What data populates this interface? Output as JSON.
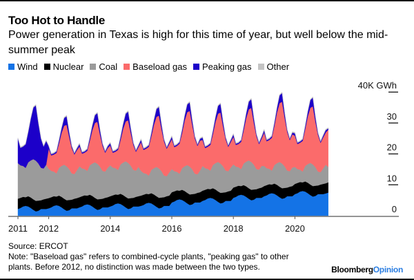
{
  "title": "Too Hot to Handle",
  "subtitle": "Power generation in Texas is high for this time of year, but well below the mid-summer peak",
  "source": "Source: ERCOT",
  "note": "Note: \"Baseload gas\" refers to combined-cycle plants, \"peaking gas\" to other plants. Before 2012, no distinction was made between the two types.",
  "logo": {
    "brand": "Bloomberg",
    "section": "Opinion"
  },
  "chart_data": {
    "type": "area",
    "stacked": true,
    "title": "Too Hot to Handle",
    "ylabel": "K GWh",
    "ylim": [
      0,
      40
    ],
    "y_ticks": [
      {
        "value": 0,
        "label": "0"
      },
      {
        "value": 10,
        "label": "10"
      },
      {
        "value": 20,
        "label": "20"
      },
      {
        "value": 30,
        "label": "30"
      },
      {
        "value": 40,
        "label": "40K GWh"
      }
    ],
    "x_ticks": [
      {
        "value": 2011,
        "label": "2011"
      },
      {
        "value": 2012,
        "label": "2012"
      },
      {
        "value": 2014,
        "label": "2014"
      },
      {
        "value": 2016,
        "label": "2016"
      },
      {
        "value": 2018,
        "label": "2018"
      },
      {
        "value": 2020,
        "label": "2020"
      }
    ],
    "xlim": [
      2011,
      2021.75
    ],
    "x_start": "2011-01",
    "x_frequency": "monthly",
    "legend_position": "top-left",
    "series": [
      {
        "name": "Wind",
        "color": "#1473e6",
        "values": [
          2.2,
          2.5,
          3.0,
          3.2,
          3.0,
          2.5,
          1.9,
          1.4,
          1.6,
          2.2,
          2.2,
          2.2,
          2.4,
          2.7,
          3.2,
          3.4,
          3.2,
          2.7,
          2.1,
          1.6,
          1.8,
          2.4,
          2.4,
          2.4,
          2.7,
          3.0,
          3.5,
          3.7,
          3.5,
          3.0,
          2.4,
          1.9,
          2.1,
          2.7,
          2.7,
          2.7,
          3.0,
          3.3,
          3.8,
          4.0,
          3.8,
          3.3,
          2.7,
          2.2,
          2.4,
          3.0,
          3.0,
          3.0,
          3.2,
          3.5,
          4.0,
          4.2,
          4.0,
          3.5,
          2.9,
          2.4,
          2.6,
          3.2,
          3.2,
          3.2,
          4.3,
          4.6,
          5.1,
          5.3,
          5.1,
          4.6,
          4.0,
          3.5,
          3.7,
          4.3,
          4.3,
          4.3,
          4.8,
          5.1,
          5.6,
          5.8,
          5.6,
          5.1,
          4.5,
          4.0,
          4.2,
          4.8,
          4.8,
          4.8,
          5.8,
          6.1,
          6.6,
          6.8,
          6.6,
          6.1,
          5.5,
          5.0,
          5.2,
          5.8,
          5.8,
          5.8,
          6.3,
          6.6,
          7.1,
          7.3,
          7.1,
          6.6,
          6.0,
          5.5,
          5.7,
          6.3,
          6.3,
          6.3,
          7.0,
          7.3,
          7.8,
          8.0,
          7.8,
          7.3,
          6.7,
          6.2,
          6.4,
          7.0,
          7.0,
          7.0,
          7.2,
          7.5
        ]
      },
      {
        "name": "Nuclear",
        "color": "#000000",
        "values": [
          3.3,
          3.3,
          3.1,
          2.8,
          3.3,
          3.4,
          3.4,
          3.4,
          3.3,
          2.8,
          3.1,
          3.3,
          3.3,
          3.3,
          3.1,
          2.8,
          3.3,
          3.4,
          3.4,
          3.4,
          3.3,
          2.8,
          3.1,
          3.3,
          3.3,
          3.3,
          3.1,
          2.8,
          3.3,
          3.4,
          3.4,
          3.4,
          3.3,
          2.8,
          3.1,
          3.3,
          3.3,
          3.3,
          3.1,
          2.8,
          3.3,
          3.4,
          3.4,
          3.4,
          3.3,
          2.8,
          3.1,
          3.3,
          3.3,
          3.3,
          3.1,
          2.8,
          3.3,
          3.4,
          3.4,
          3.4,
          3.3,
          2.8,
          3.1,
          3.3,
          3.3,
          3.3,
          3.1,
          2.8,
          3.3,
          3.4,
          3.4,
          3.4,
          3.3,
          2.8,
          3.1,
          3.3,
          3.3,
          3.3,
          3.1,
          2.8,
          3.3,
          3.4,
          3.4,
          3.4,
          3.3,
          2.8,
          3.1,
          3.3,
          3.3,
          3.3,
          3.1,
          2.8,
          3.3,
          3.4,
          3.4,
          3.4,
          3.3,
          2.8,
          3.1,
          3.3,
          3.3,
          3.3,
          3.1,
          2.8,
          3.3,
          3.4,
          3.4,
          3.4,
          3.3,
          2.8,
          3.1,
          3.3,
          3.3,
          3.3,
          3.1,
          2.8,
          3.3,
          3.4,
          3.4,
          3.4,
          3.3,
          2.8,
          3.1,
          3.3,
          3.3,
          3.3
        ]
      },
      {
        "name": "Coal",
        "color": "#9b9b9b",
        "values": [
          11.5,
          10.5,
          10,
          9.5,
          11,
          12,
          13,
          13,
          12,
          10.5,
          10,
          11,
          9.5,
          8.5,
          8,
          7.5,
          9,
          10,
          11,
          11,
          10,
          8.5,
          8,
          9,
          10,
          9,
          8.5,
          8,
          9.5,
          10.5,
          11.5,
          11.5,
          10.5,
          9,
          8.5,
          9.5,
          10,
          9,
          8.5,
          8,
          9.5,
          10.5,
          11.5,
          11.5,
          10.5,
          9,
          8.5,
          9.5,
          8,
          7,
          6.5,
          6,
          7.5,
          8.5,
          9.5,
          9.5,
          8.5,
          7,
          6.5,
          7.5,
          7.5,
          6.5,
          6,
          5.5,
          7,
          8,
          9,
          9,
          8,
          6.5,
          6,
          7,
          8,
          7,
          6.5,
          6,
          7.5,
          8.5,
          9.5,
          9.5,
          8.5,
          7,
          6.5,
          7.5,
          7.5,
          6.5,
          6,
          5.5,
          7,
          8,
          9,
          9,
          8,
          6.5,
          6,
          7,
          6.5,
          5.5,
          5,
          4.5,
          6,
          7,
          8,
          8,
          7,
          5.5,
          5,
          6,
          5.5,
          4.5,
          4,
          3.5,
          5,
          6,
          7,
          7,
          6,
          4.5,
          4,
          5,
          6,
          5
        ]
      },
      {
        "name": "Baseload gas",
        "color": "#fb6b6b",
        "values": [
          0,
          0,
          0,
          0,
          0,
          0,
          0,
          0,
          0,
          0,
          0,
          0,
          6.5,
          5.0,
          5.5,
          6.6,
          7.9,
          10.7,
          12.6,
          13.4,
          10.4,
          8.2,
          6.3,
          6.5,
          6.4,
          4.8,
          5.3,
          6.5,
          7.9,
          10.8,
          12.7,
          13.6,
          10.4,
          8.1,
          6.1,
          6.4,
          6.4,
          4.8,
          5.3,
          6.5,
          7.9,
          10.9,
          12.9,
          13.8,
          10.6,
          8.1,
          6.1,
          6.4,
          9.3,
          7.5,
          8.1,
          9.3,
          10.9,
          14,
          16.2,
          17.1,
          13.6,
          11,
          8.9,
          9.2,
          9.7,
          7.8,
          8.4,
          9.7,
          11.4,
          14.8,
          17.1,
          18,
          14.3,
          11.4,
          9.2,
          9.7,
          8.4,
          6.5,
          7.1,
          8.3,
          10,
          13.3,
          15.6,
          16.5,
          12.9,
          10.1,
          7.9,
          8.3,
          8.9,
          7,
          7.5,
          8.8,
          10.7,
          14.1,
          16.5,
          17.5,
          13.6,
          10.6,
          8.3,
          8.8,
          10.8,
          8.7,
          9.3,
          10.6,
          12.7,
          16.4,
          19,
          20,
          15.8,
          12.5,
          10.1,
          10.7,
          10.1,
          8.1,
          8.7,
          9.9,
          11.9,
          15.4,
          17.8,
          18.8,
          14.8,
          11.8,
          9.5,
          10,
          10.4,
          12.0
        ]
      },
      {
        "name": "Peaking gas",
        "color": "#1c00c9",
        "values": [
          7.9,
          5.7,
          6.3,
          7.6,
          9.8,
          13.5,
          16.7,
          17.9,
          13.0,
          9.4,
          7.1,
          7.7,
          0.8,
          0.4,
          0.4,
          0.5,
          1,
          1.5,
          2.5,
          2.8,
          1.5,
          0.6,
          0.4,
          0.6,
          0.8,
          0.4,
          0.4,
          0.5,
          1,
          1.5,
          2.5,
          2.8,
          1.5,
          0.6,
          0.4,
          0.6,
          0.8,
          0.4,
          0.4,
          0.5,
          1,
          1.5,
          2.5,
          2.8,
          1.5,
          0.6,
          0.4,
          0.6,
          0.8,
          0.4,
          0.4,
          0.5,
          1,
          1.5,
          2.5,
          2.8,
          1.5,
          0.6,
          0.4,
          0.6,
          0.8,
          0.4,
          0.4,
          0.5,
          1,
          1.5,
          2.5,
          2.8,
          1.5,
          0.6,
          0.4,
          0.6,
          0.8,
          0.4,
          0.4,
          0.5,
          1,
          1.5,
          2.5,
          2.8,
          1.5,
          0.6,
          0.4,
          0.6,
          0.8,
          0.4,
          0.4,
          0.5,
          1,
          1.5,
          2.5,
          2.8,
          1.5,
          0.6,
          0.4,
          0.6,
          0.8,
          0.4,
          0.4,
          0.5,
          1,
          1.5,
          2.5,
          2.8,
          1.5,
          0.6,
          0.4,
          0.6,
          0.8,
          0.4,
          0.4,
          0.5,
          1,
          1.5,
          2.5,
          2.8,
          1.5,
          0.6,
          0.4,
          0.6,
          0.8,
          0.4
        ]
      },
      {
        "name": "Other",
        "color": "#c4c4c4",
        "values": [
          0.3,
          0.3,
          0.3,
          0.3,
          0.3,
          0.3,
          0.3,
          0.3,
          0.3,
          0.3,
          0.3,
          0.3,
          0.3,
          0.3,
          0.3,
          0.3,
          0.3,
          0.3,
          0.3,
          0.3,
          0.3,
          0.3,
          0.3,
          0.3,
          0.3,
          0.3,
          0.3,
          0.3,
          0.3,
          0.3,
          0.3,
          0.3,
          0.3,
          0.3,
          0.3,
          0.3,
          0.3,
          0.3,
          0.3,
          0.3,
          0.3,
          0.3,
          0.3,
          0.3,
          0.3,
          0.3,
          0.3,
          0.3,
          0.3,
          0.3,
          0.3,
          0.3,
          0.3,
          0.3,
          0.3,
          0.3,
          0.3,
          0.3,
          0.3,
          0.3,
          0.3,
          0.3,
          0.3,
          0.3,
          0.3,
          0.3,
          0.3,
          0.3,
          0.3,
          0.3,
          0.3,
          0.3,
          0.3,
          0.3,
          0.3,
          0.3,
          0.3,
          0.3,
          0.3,
          0.3,
          0.3,
          0.3,
          0.3,
          0.3,
          0.3,
          0.3,
          0.3,
          0.3,
          0.3,
          0.3,
          0.3,
          0.3,
          0.3,
          0.3,
          0.3,
          0.3,
          0.3,
          0.3,
          0.3,
          0.3,
          0.3,
          0.3,
          0.3,
          0.3,
          0.3,
          0.3,
          0.3,
          0.3,
          0.3,
          0.3,
          0.3,
          0.3,
          0.3,
          0.3,
          0.3,
          0.3,
          0.3,
          0.3,
          0.3,
          0.3,
          0.3,
          0.3
        ]
      }
    ]
  }
}
